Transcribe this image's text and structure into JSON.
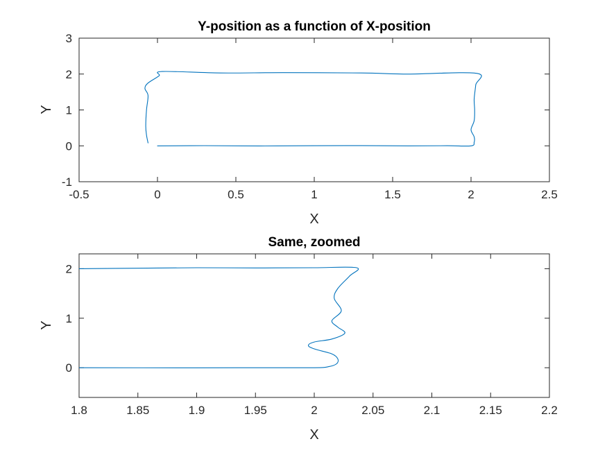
{
  "chart_data": [
    {
      "type": "line",
      "title": "Y-position as a function of X-position",
      "xlabel": "X",
      "ylabel": "Y",
      "xlim": [
        -0.5,
        2.5
      ],
      "ylim": [
        -1,
        3
      ],
      "xticks": [
        -0.5,
        0,
        0.5,
        1,
        1.5,
        2,
        2.5
      ],
      "xtick_labels": [
        "-0.5",
        "0",
        "0.5",
        "1",
        "1.5",
        "2",
        "2.5"
      ],
      "yticks": [
        -1,
        0,
        1,
        2,
        3
      ],
      "ytick_labels": [
        "-1",
        "0",
        "1",
        "2",
        "3"
      ],
      "grid": false,
      "color": "#0072BD",
      "series": [
        {
          "x": [
            0.0,
            0.3,
            0.65,
            1.0,
            1.3,
            1.6,
            1.85,
            2.0,
            2.02,
            2.02,
            2.0,
            2.02,
            2.023,
            2.02,
            2.03,
            2.036,
            1.6,
            1.3,
            0.8,
            0.4,
            0.03,
            0.01,
            -0.06,
            -0.08,
            -0.06,
            -0.07,
            -0.075,
            -0.07,
            -0.06
          ],
          "y": [
            0.0,
            0.005,
            -0.003,
            0.002,
            0.006,
            0.0,
            0.002,
            0.0,
            0.1,
            0.25,
            0.45,
            0.7,
            1.0,
            1.3,
            1.7,
            2.02,
            2.0,
            2.03,
            2.04,
            2.03,
            2.07,
            1.95,
            1.75,
            1.6,
            1.4,
            1.0,
            0.55,
            0.3,
            0.08
          ]
        }
      ]
    },
    {
      "type": "line",
      "title": "Same, zoomed",
      "xlabel": "X",
      "ylabel": "Y",
      "xlim": [
        1.8,
        2.2
      ],
      "ylim": [
        -0.6,
        2.3
      ],
      "xticks": [
        1.8,
        1.85,
        1.9,
        1.95,
        2.0,
        2.05,
        2.1,
        2.15,
        2.2
      ],
      "xtick_labels": [
        "1.8",
        "1.85",
        "1.9",
        "1.95",
        "2",
        "2.05",
        "2.1",
        "2.15",
        "2.2"
      ],
      "yticks": [
        0,
        1,
        2
      ],
      "ytick_labels": [
        "0",
        "1",
        "2"
      ],
      "grid": false,
      "color": "#0072BD",
      "series": [
        {
          "x": [
            1.8,
            1.9,
            1.95,
            2.0,
            2.012,
            2.019,
            2.02,
            2.015,
            2.0,
            1.995,
            2.0,
            2.015,
            2.026,
            2.02,
            2.015,
            2.023,
            2.017,
            2.02,
            2.03,
            2.036,
            2.0,
            1.95,
            1.9,
            1.85,
            1.8
          ],
          "y": [
            0.0,
            -0.002,
            0.0,
            0.0,
            0.02,
            0.08,
            0.18,
            0.28,
            0.38,
            0.45,
            0.52,
            0.58,
            0.7,
            0.82,
            0.95,
            1.15,
            1.4,
            1.6,
            1.85,
            2.02,
            2.02,
            2.015,
            2.02,
            2.01,
            2.0
          ]
        }
      ]
    }
  ]
}
